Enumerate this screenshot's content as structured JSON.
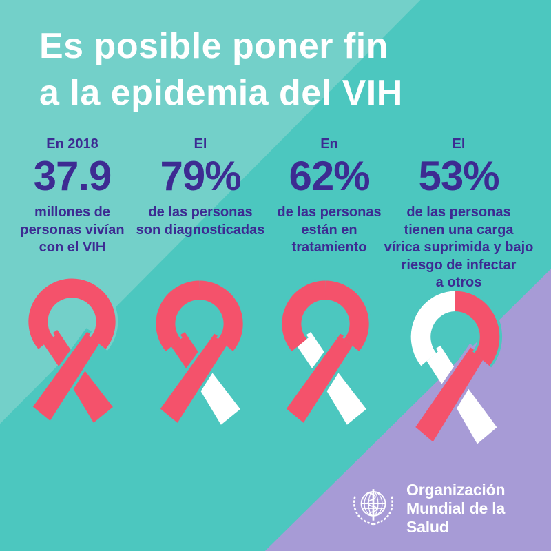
{
  "title": {
    "line1": "Es posible poner fin",
    "line2": "a la epidemia del VIH"
  },
  "stats": [
    {
      "intro": "En 2018",
      "value": "37.9",
      "description": "millones de\npersonas vivían\ncon el VIH"
    },
    {
      "intro": "El",
      "value": "79%",
      "description": "de las personas\nson diagnosticadas"
    },
    {
      "intro": "En",
      "value": "62%",
      "description": "de las personas\nestán en\ntratamiento"
    },
    {
      "intro": "El",
      "value": "53%",
      "description": "de las personas\ntienen una carga\nvírica suprimida y bajo\nriesgo de infectar\na otros"
    }
  ],
  "ribbons": [
    {
      "name": "ribbon-all-red",
      "arc_left": "#F4526B",
      "arc_right": "#F4526B",
      "band_upper": "#F4526B",
      "tail_right": "#F4526B",
      "band_cross": "#F4526B",
      "gap_arc": "#73D0C9",
      "gap_cross": "#4CC7BF"
    },
    {
      "name": "ribbon-79-red",
      "arc_left": "#F4526B",
      "arc_right": "#F4526B",
      "band_upper": "#F4526B",
      "tail_right": "#FFFFFF",
      "band_cross": "#F4526B",
      "gap_arc": "#4CC7BF",
      "gap_cross": "#4CC7BF"
    },
    {
      "name": "ribbon-62-red",
      "arc_left": "#F4526B",
      "arc_right": "#F4526B",
      "band_upper": "#FFFFFF",
      "tail_right": "#FFFFFF",
      "band_cross": "#F4526B",
      "gap_arc": "#4CC7BF",
      "gap_cross": "#4CC7BF"
    },
    {
      "name": "ribbon-53-red",
      "arc_left": "#FFFFFF",
      "arc_right": "#F4526B",
      "band_upper": "#FFFFFF",
      "tail_right": "#FFFFFF",
      "band_cross": "#F4526B",
      "gap_arc": "#4CC7BF",
      "gap_cross": "#A79BD6"
    }
  ],
  "logo": {
    "line1": "Organización",
    "line2": "Mundial de la Salud"
  },
  "colors": {
    "background_teal": "#4CC7BF",
    "background_teal_light": "#73D0C9",
    "background_lavender": "#A79BD6",
    "text_violet": "#3D2B92",
    "title_white": "#FFFFFF",
    "ribbon_red": "#F4526B"
  },
  "chart_data": {
    "type": "bar",
    "title": "Es posible poner fin a la epidemia del VIH",
    "categories": [
      "Personas que vivían con el VIH en 2018 (millones)",
      "Personas diagnosticadas (%)",
      "Personas en tratamiento (%)",
      "Personas con carga vírica suprimida y bajo riesgo de infectar a otros (%)"
    ],
    "values": [
      37.9,
      79,
      62,
      53
    ],
    "value_labels": [
      "37.9",
      "79%",
      "62%",
      "53%"
    ],
    "intro_labels": [
      "En 2018",
      "El",
      "En",
      "El"
    ],
    "legend_position": "none",
    "grid": false,
    "annotations": [
      "Organización Mundial de la Salud"
    ]
  }
}
